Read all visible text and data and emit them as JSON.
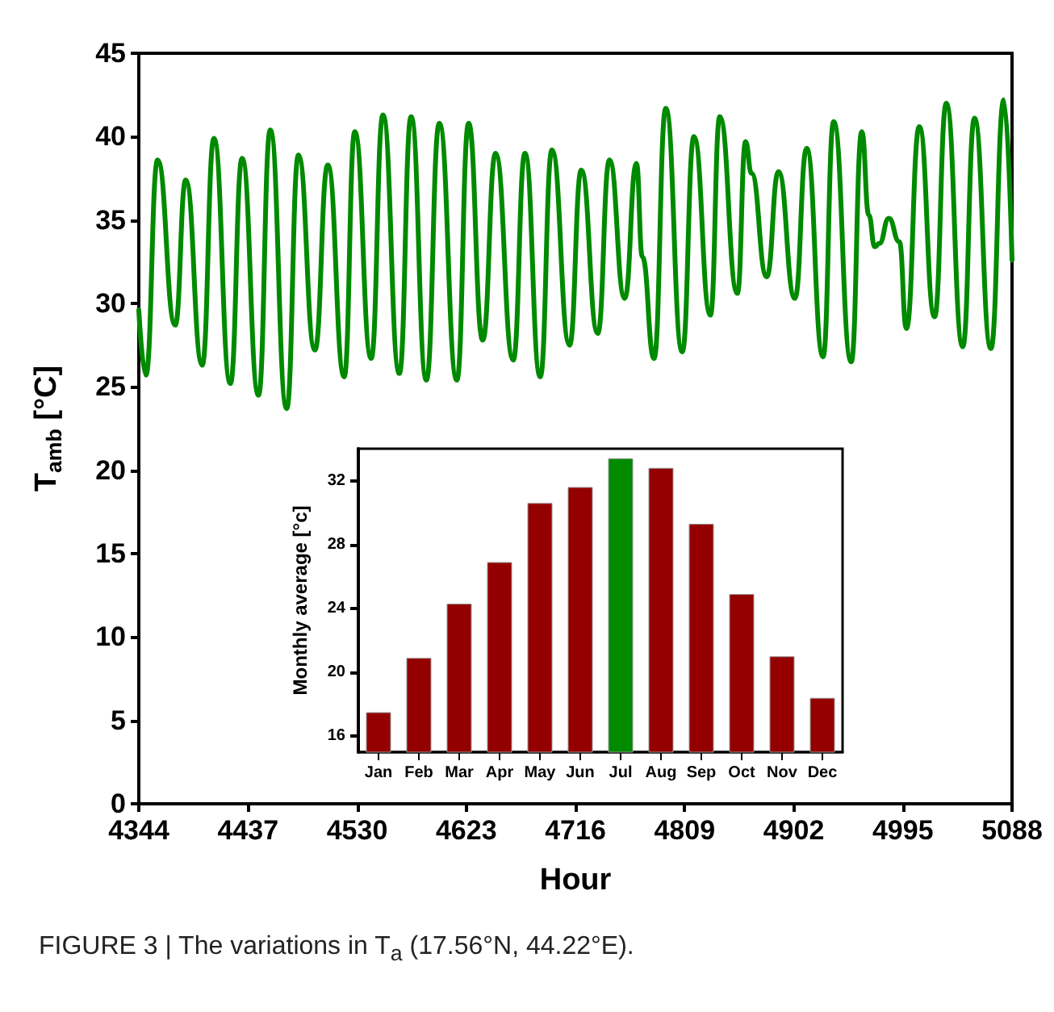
{
  "chart_data": [
    {
      "type": "line",
      "xlabel": "Hour",
      "ylabel": "T$_{amb}$ [°C]",
      "annotations": [
        "FIGURE 3 | The variations in T$_{a}$ (17.56°N, 44.22°E)."
      ],
      "xlim": [
        4344,
        5088
      ],
      "xticks": [
        4344,
        4437,
        4530,
        4623,
        4716,
        4809,
        4902,
        4995,
        5088
      ],
      "ylim": [
        0,
        45
      ],
      "yticks": [
        0,
        5,
        10,
        15,
        20,
        25,
        30,
        35,
        40,
        45
      ],
      "line_style": "solid",
      "series": [
        {
          "color": "#008a00",
          "x": [
            4344,
            4350,
            4360,
            4375,
            4384,
            4398,
            4408,
            4422,
            4432,
            4446,
            4456,
            4470,
            4480,
            4494,
            4505,
            4519,
            4528,
            4542,
            4552,
            4566,
            4576,
            4589,
            4600,
            4615,
            4625,
            4637,
            4648,
            4663,
            4673,
            4686,
            4696,
            4711,
            4721,
            4735,
            4745,
            4758,
            4768,
            4773,
            4783,
            4793,
            4807,
            4817,
            4831,
            4839,
            4854,
            4861,
            4866,
            4879,
            4889,
            4903,
            4913,
            4927,
            4936,
            4951,
            4960,
            4966,
            4971,
            4975,
            4983,
            4992,
            4998,
            5009,
            5022,
            5032,
            5046,
            5056,
            5070,
            5081,
            5088
          ],
          "values": [
            29.6,
            25.7,
            38.6,
            28.7,
            37.4,
            26.3,
            39.9,
            25.2,
            38.7,
            24.5,
            40.4,
            23.7,
            38.9,
            27.2,
            38.3,
            25.6,
            40.3,
            26.7,
            41.3,
            25.8,
            41.2,
            25.4,
            40.8,
            25.4,
            40.8,
            27.8,
            39.0,
            26.6,
            39.0,
            25.6,
            39.2,
            27.5,
            38.0,
            28.2,
            38.6,
            30.3,
            38.4,
            32.8,
            26.7,
            41.7,
            27.1,
            40.0,
            29.3,
            41.2,
            30.6,
            39.7,
            37.8,
            31.6,
            37.9,
            30.3,
            39.3,
            26.8,
            40.9,
            26.5,
            40.3,
            35.3,
            33.4,
            33.6,
            35.1,
            33.7,
            28.5,
            40.6,
            29.2,
            42.0,
            27.4,
            41.1,
            27.3,
            42.2,
            32.6
          ]
        }
      ]
    },
    {
      "type": "bar",
      "ylabel": "Monthly average [°c]",
      "categories": [
        "Jan",
        "Feb",
        "Mar",
        "Apr",
        "May",
        "Jun",
        "Jul",
        "Aug",
        "Sep",
        "Oct",
        "Nov",
        "Dec"
      ],
      "ylim": [
        15,
        34
      ],
      "yticks": [
        16,
        20,
        24,
        28,
        32
      ],
      "values": [
        17.5,
        20.9,
        24.3,
        26.9,
        30.6,
        31.6,
        33.4,
        32.8,
        29.3,
        24.9,
        21.0,
        18.4
      ],
      "colors": [
        "#940000",
        "#940000",
        "#940000",
        "#940000",
        "#940000",
        "#940000",
        "#008a00",
        "#940000",
        "#940000",
        "#940000",
        "#940000",
        "#940000"
      ]
    }
  ]
}
